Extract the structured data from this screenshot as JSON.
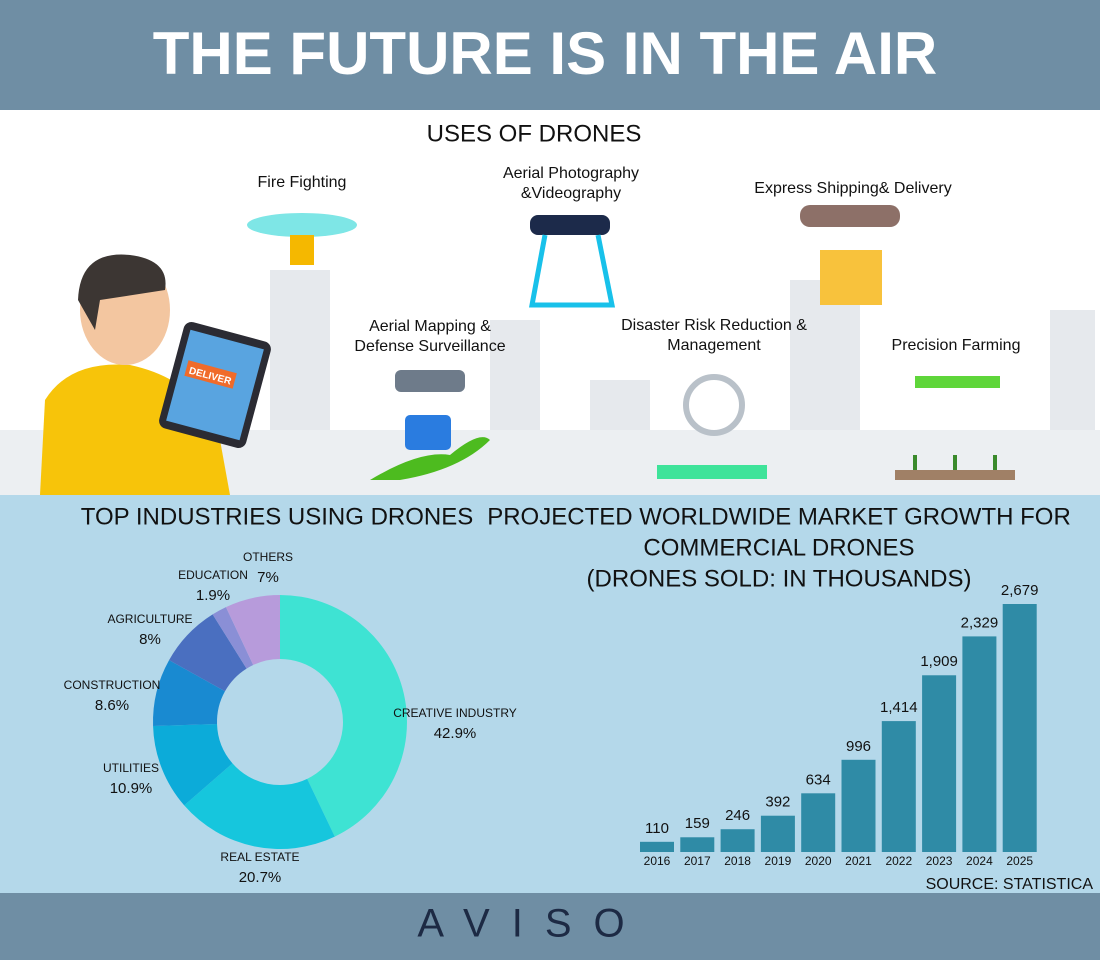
{
  "header": {
    "title": "THE FUTURE IS IN THE AIR"
  },
  "uses": {
    "title": "USES OF DRONES",
    "items": [
      [
        "Fire Fighting"
      ],
      [
        "Aerial Photography",
        "&Videography"
      ],
      [
        "Express Shipping& Delivery"
      ],
      [
        "Aerial Mapping &",
        "Defense Surveillance"
      ],
      [
        "Disaster Risk Reduction &",
        "Management"
      ],
      [
        "Precision Farming"
      ]
    ],
    "tablet_label": "DELIVER"
  },
  "chart_data": [
    {
      "type": "pie",
      "title": "TOP INDUSTRIES USING DRONES",
      "categories": [
        "CREATIVE INDUSTRY",
        "REAL ESTATE",
        "UTILITIES",
        "CONSTRUCTION",
        "AGRICULTURE",
        "EDUCATION",
        "OTHERS"
      ],
      "values": [
        42.9,
        20.7,
        10.9,
        8.6,
        8,
        1.9,
        7
      ],
      "value_labels": [
        "42.9%",
        "20.7%",
        "10.9%",
        "8.6%",
        "8%",
        "1.9%",
        "7%"
      ],
      "colors": [
        "#3ee3d3",
        "#16c6dd",
        "#0cabd9",
        "#198ad1",
        "#4a6fc0",
        "#8a8fd6",
        "#b79bdb"
      ]
    },
    {
      "type": "bar",
      "title": [
        "PROJECTED WORLDWIDE MARKET GROWTH FOR",
        "COMMERCIAL DRONES",
        "(DRONES SOLD: IN THOUSANDS)"
      ],
      "categories": [
        "2016",
        "2017",
        "2018",
        "2019",
        "2020",
        "2021",
        "2022",
        "2023",
        "2024",
        "2025"
      ],
      "values": [
        110,
        159,
        246,
        392,
        634,
        996,
        1414,
        1909,
        2329,
        2679
      ],
      "value_labels": [
        "110",
        "159",
        "246",
        "392",
        "634",
        "996",
        "1,414",
        "1,909",
        "2,329",
        "2,679"
      ],
      "color": "#2f8ba6"
    }
  ],
  "footer": {
    "source": "SOURCE: STATISTICA",
    "logo": "AVISO"
  }
}
